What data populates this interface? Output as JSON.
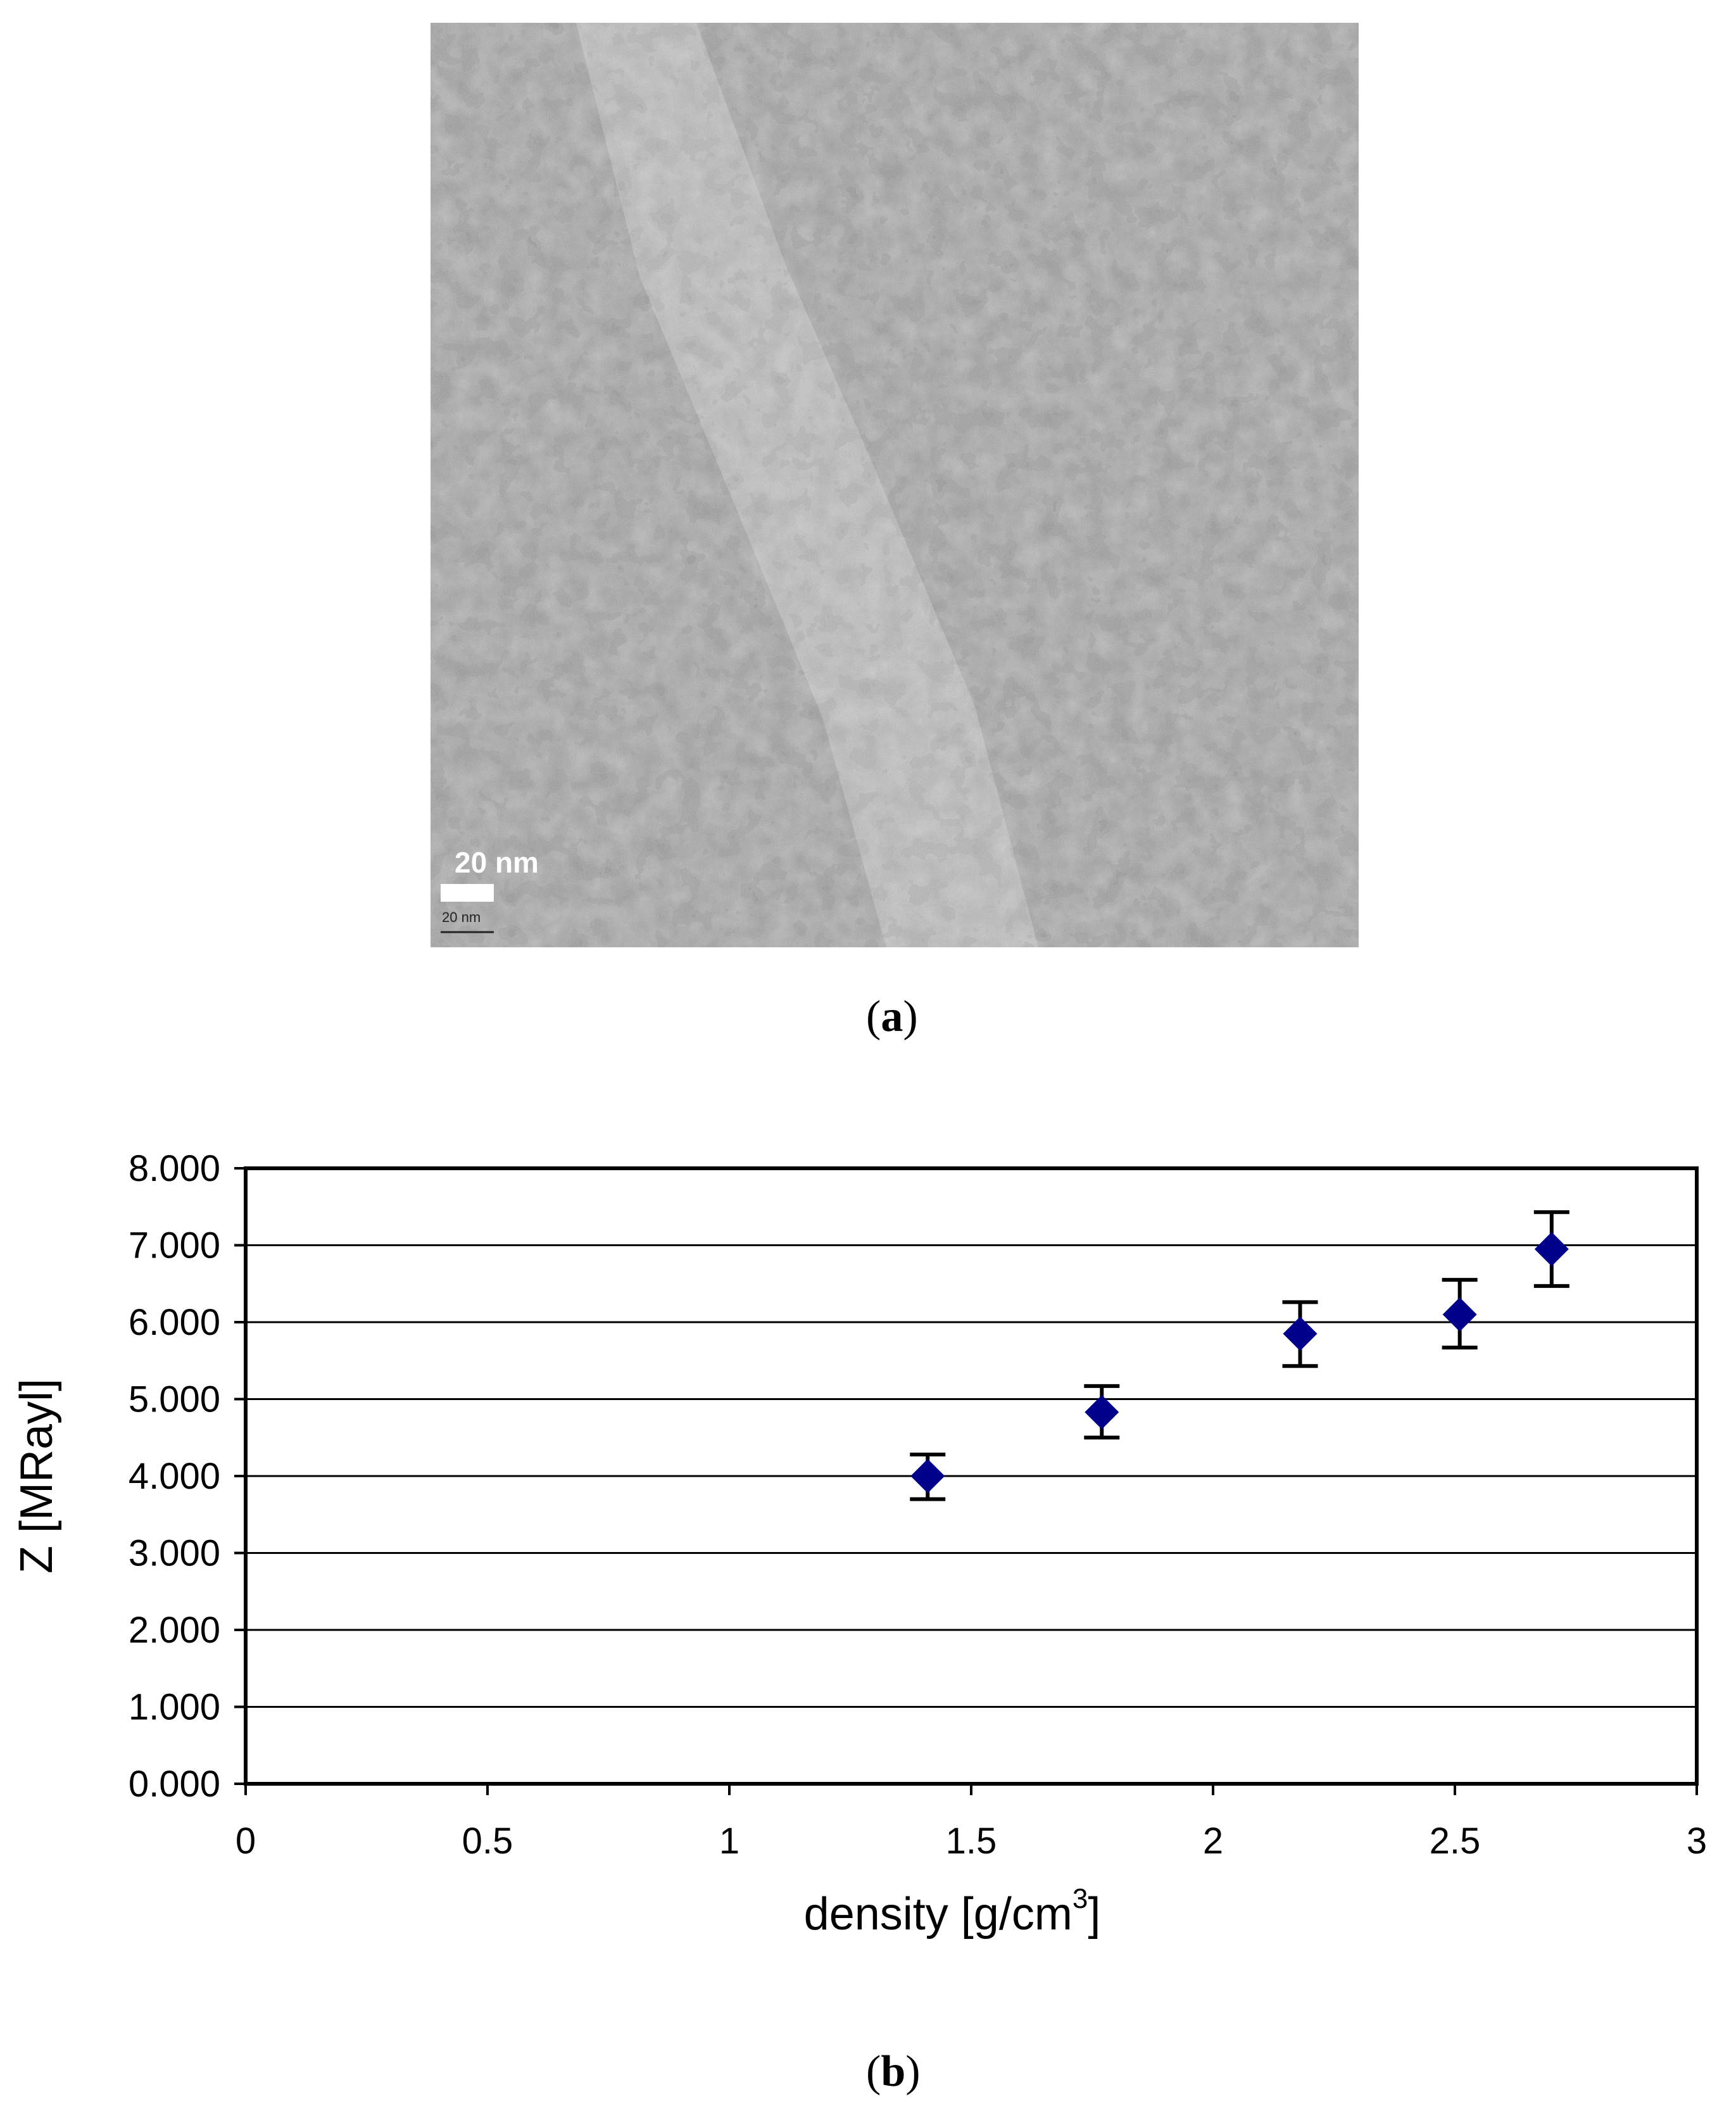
{
  "panel_a": {
    "caption_open": "(",
    "caption_letter": "a",
    "caption_close": ")",
    "scale_bar_label": "20 nm",
    "scale_bar_small_label": "20 nm"
  },
  "panel_b": {
    "caption_open": "(",
    "caption_letter": "b",
    "caption_close": ")"
  },
  "chart_data": {
    "type": "scatter",
    "xlabel": "density [g/cm",
    "xlabel_superscript": "3",
    "xlabel_suffix": "]",
    "ylabel": "Z [MRayl]",
    "xlim": [
      0,
      3
    ],
    "ylim": [
      0,
      8
    ],
    "x_ticks": [
      0,
      0.5,
      1,
      1.5,
      2,
      2.5,
      3
    ],
    "x_tick_labels": [
      "0",
      "0.5",
      "1",
      "1.5",
      "2",
      "2.5",
      "3"
    ],
    "y_ticks": [
      0,
      1,
      2,
      3,
      4,
      5,
      6,
      7,
      8
    ],
    "y_tick_labels": [
      "0.000",
      "1.000",
      "2.000",
      "3.000",
      "4.000",
      "5.000",
      "6.000",
      "7.000",
      "8.000"
    ],
    "grid": "horizontal",
    "marker": "diamond",
    "marker_color": "#00008b",
    "series": [
      {
        "points": [
          {
            "x": 1.41,
            "y": 4.0,
            "err_low": 3.7,
            "err_high": 4.28
          },
          {
            "x": 1.77,
            "y": 4.83,
            "err_low": 4.5,
            "err_high": 5.17
          },
          {
            "x": 2.18,
            "y": 5.85,
            "err_low": 5.43,
            "err_high": 6.26
          },
          {
            "x": 2.51,
            "y": 6.1,
            "err_low": 5.67,
            "err_high": 6.55
          },
          {
            "x": 2.7,
            "y": 6.95,
            "err_low": 6.47,
            "err_high": 7.43
          }
        ]
      }
    ]
  }
}
